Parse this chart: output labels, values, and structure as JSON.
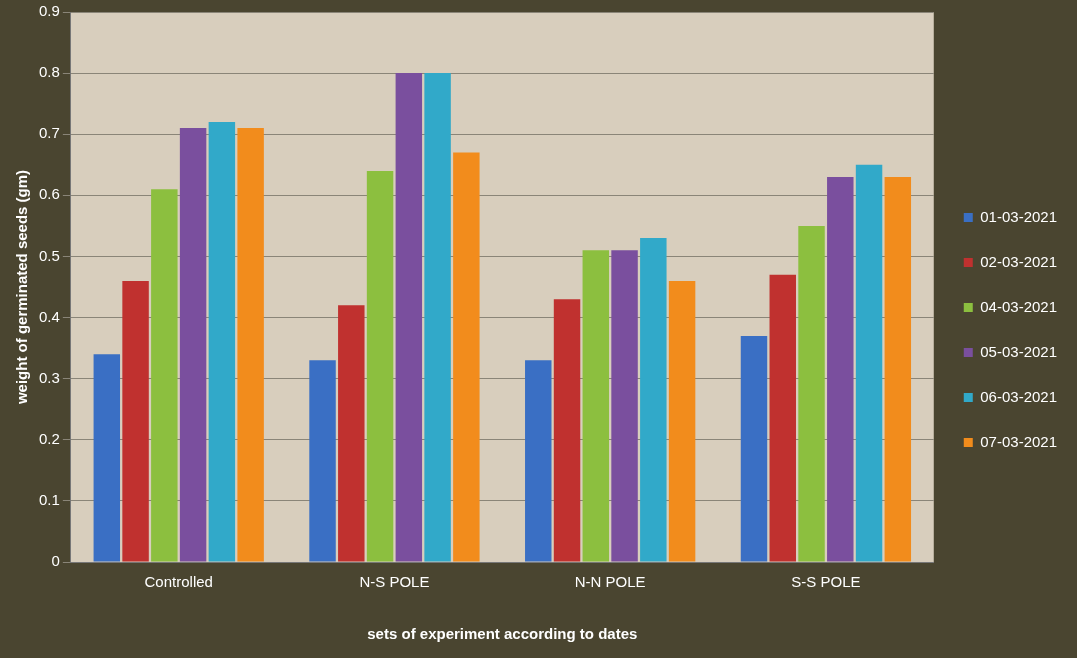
{
  "chart_data": {
    "type": "bar",
    "xlabel": "sets of experiment according to dates",
    "ylabel": "weight of germinated seeds (gm)",
    "categories": [
      "Controlled",
      "N-S POLE",
      "N-N POLE",
      "S-S POLE"
    ],
    "series": [
      {
        "name": "01-03-2021",
        "color": "#3a6fc4",
        "values": [
          0.34,
          0.33,
          0.33,
          0.37
        ]
      },
      {
        "name": "02-03-2021",
        "color": "#c0312f",
        "values": [
          0.46,
          0.42,
          0.43,
          0.47
        ]
      },
      {
        "name": "04-03-2021",
        "color": "#8cbf3f",
        "values": [
          0.61,
          0.64,
          0.51,
          0.55
        ]
      },
      {
        "name": "05-03-2021",
        "color": "#7a4f9e",
        "values": [
          0.71,
          0.8,
          0.51,
          0.63
        ]
      },
      {
        "name": "06-03-2021",
        "color": "#31a9c9",
        "values": [
          0.72,
          0.8,
          0.53,
          0.65
        ]
      },
      {
        "name": "07-03-2021",
        "color": "#f28c1c",
        "values": [
          0.71,
          0.67,
          0.46,
          0.63
        ]
      }
    ],
    "ylim": [
      0,
      0.9
    ],
    "yticks": [
      0,
      0.1,
      0.2,
      0.3,
      0.4,
      0.5,
      0.6,
      0.7,
      0.8,
      0.9
    ],
    "grid": "y",
    "legend": "right"
  }
}
